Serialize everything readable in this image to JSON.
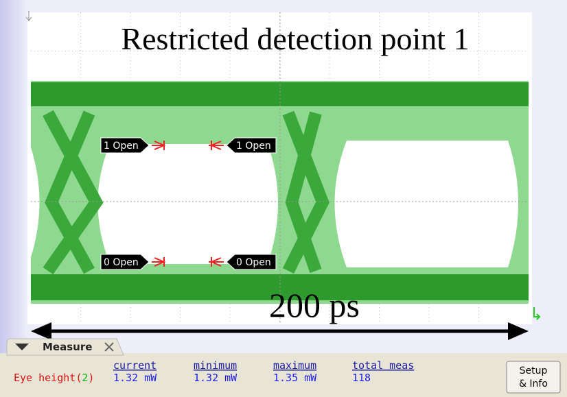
{
  "overlay": {
    "title": "Restricted detection point 1",
    "span_label": "200 ps"
  },
  "markers": [
    {
      "label": "1 Open"
    },
    {
      "label": "1 Open"
    },
    {
      "label": "0 Open"
    },
    {
      "label": "0 Open"
    }
  ],
  "measure": {
    "tab": "Measure",
    "headers": [
      "current",
      "minimum",
      "maximum",
      "total meas"
    ],
    "row": {
      "label_prefix": "Eye height",
      "label_open": "(",
      "channel": "2",
      "label_close": ")",
      "values": [
        "1.32 mW",
        "1.32 mW",
        "1.35 mW",
        "118"
      ]
    },
    "button": [
      "Setup",
      "& Info"
    ]
  }
}
